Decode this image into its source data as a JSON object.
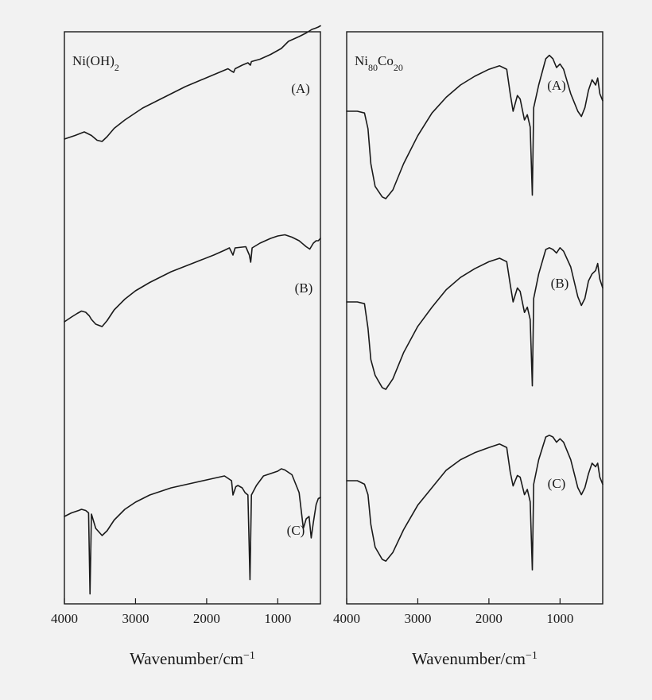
{
  "chart_data": [
    {
      "type": "line",
      "title": "Ni(OH)2",
      "title_parts": {
        "base": "Ni(OH)",
        "sub1": "2"
      },
      "xlabel": "Wavenumber/cm",
      "xlabel_sup": "−1",
      "x_reversed": true,
      "xlim": [
        4000,
        400
      ],
      "xticks": [
        4000,
        3000,
        2000,
        1000
      ],
      "xtick_labels": [
        "4000",
        "3000",
        "2000",
        "1000"
      ],
      "y_axis": "none",
      "grid": false,
      "series": [
        {
          "name": "(A)",
          "points": [
            [
              4000,
              0.0
            ],
            [
              3850,
              0.03
            ],
            [
              3720,
              0.06
            ],
            [
              3620,
              0.03
            ],
            [
              3540,
              -0.01
            ],
            [
              3470,
              -0.02
            ],
            [
              3400,
              0.02
            ],
            [
              3300,
              0.09
            ],
            [
              3150,
              0.16
            ],
            [
              3000,
              0.22
            ],
            [
              2900,
              0.26
            ],
            [
              2700,
              0.32
            ],
            [
              2500,
              0.38
            ],
            [
              2300,
              0.44
            ],
            [
              2100,
              0.49
            ],
            [
              1900,
              0.54
            ],
            [
              1700,
              0.59
            ],
            [
              1650,
              0.57
            ],
            [
              1620,
              0.56
            ],
            [
              1600,
              0.59
            ],
            [
              1500,
              0.62
            ],
            [
              1420,
              0.64
            ],
            [
              1385,
              0.62
            ],
            [
              1370,
              0.65
            ],
            [
              1250,
              0.67
            ],
            [
              1100,
              0.71
            ],
            [
              950,
              0.76
            ],
            [
              850,
              0.82
            ],
            [
              700,
              0.86
            ],
            [
              600,
              0.89
            ],
            [
              520,
              0.92
            ],
            [
              470,
              0.93
            ],
            [
              430,
              0.94
            ],
            [
              400,
              0.95
            ]
          ]
        },
        {
          "name": "(B)",
          "points": [
            [
              4000,
              0.0
            ],
            [
              3900,
              0.04
            ],
            [
              3820,
              0.07
            ],
            [
              3760,
              0.09
            ],
            [
              3700,
              0.08
            ],
            [
              3650,
              0.05
            ],
            [
              3620,
              0.02
            ],
            [
              3560,
              -0.02
            ],
            [
              3470,
              -0.04
            ],
            [
              3400,
              0.01
            ],
            [
              3300,
              0.1
            ],
            [
              3150,
              0.19
            ],
            [
              3000,
              0.26
            ],
            [
              2800,
              0.33
            ],
            [
              2500,
              0.42
            ],
            [
              2200,
              0.49
            ],
            [
              1900,
              0.56
            ],
            [
              1750,
              0.6
            ],
            [
              1680,
              0.62
            ],
            [
              1630,
              0.56
            ],
            [
              1600,
              0.62
            ],
            [
              1450,
              0.63
            ],
            [
              1400,
              0.56
            ],
            [
              1380,
              0.5
            ],
            [
              1360,
              0.62
            ],
            [
              1250,
              0.66
            ],
            [
              1100,
              0.7
            ],
            [
              1000,
              0.72
            ],
            [
              900,
              0.73
            ],
            [
              800,
              0.71
            ],
            [
              700,
              0.68
            ],
            [
              600,
              0.63
            ],
            [
              550,
              0.61
            ],
            [
              500,
              0.66
            ],
            [
              460,
              0.68
            ],
            [
              430,
              0.68
            ],
            [
              400,
              0.7
            ]
          ]
        },
        {
          "name": "(C)",
          "points": [
            [
              4000,
              0.0
            ],
            [
              3900,
              0.03
            ],
            [
              3800,
              0.05
            ],
            [
              3760,
              0.06
            ],
            [
              3700,
              0.05
            ],
            [
              3660,
              0.03
            ],
            [
              3640,
              -0.65
            ],
            [
              3620,
              0.02
            ],
            [
              3560,
              -0.1
            ],
            [
              3470,
              -0.16
            ],
            [
              3400,
              -0.12
            ],
            [
              3300,
              -0.03
            ],
            [
              3150,
              0.06
            ],
            [
              3000,
              0.12
            ],
            [
              2800,
              0.18
            ],
            [
              2500,
              0.24
            ],
            [
              2200,
              0.28
            ],
            [
              1900,
              0.32
            ],
            [
              1750,
              0.34
            ],
            [
              1650,
              0.3
            ],
            [
              1630,
              0.18
            ],
            [
              1590,
              0.25
            ],
            [
              1560,
              0.26
            ],
            [
              1500,
              0.24
            ],
            [
              1460,
              0.2
            ],
            [
              1420,
              0.18
            ],
            [
              1390,
              -0.53
            ],
            [
              1370,
              0.18
            ],
            [
              1300,
              0.26
            ],
            [
              1200,
              0.34
            ],
            [
              1100,
              0.36
            ],
            [
              1000,
              0.38
            ],
            [
              950,
              0.4
            ],
            [
              900,
              0.39
            ],
            [
              800,
              0.35
            ],
            [
              700,
              0.2
            ],
            [
              640,
              -0.1
            ],
            [
              600,
              -0.02
            ],
            [
              560,
              0.0
            ],
            [
              530,
              -0.18
            ],
            [
              500,
              -0.05
            ],
            [
              460,
              0.1
            ],
            [
              430,
              0.15
            ],
            [
              400,
              0.16
            ]
          ]
        }
      ]
    },
    {
      "type": "line",
      "title": "Ni80Co20",
      "title_parts": {
        "base1": "Ni",
        "sub1": "80",
        "base2": "Co",
        "sub2": "20"
      },
      "xlabel": "Wavenumber/cm",
      "xlabel_sup": "−1",
      "x_reversed": true,
      "xlim": [
        4000,
        400
      ],
      "xticks": [
        4000,
        3000,
        2000,
        1000
      ],
      "xtick_labels": [
        "4000",
        "3000",
        "2000",
        "1000"
      ],
      "y_axis": "none",
      "grid": false,
      "series": [
        {
          "name": "(A)",
          "points": [
            [
              4000,
              0.0
            ],
            [
              3850,
              0.0
            ],
            [
              3750,
              -0.01
            ],
            [
              3700,
              -0.1
            ],
            [
              3660,
              -0.3
            ],
            [
              3600,
              -0.43
            ],
            [
              3500,
              -0.49
            ],
            [
              3450,
              -0.5
            ],
            [
              3350,
              -0.45
            ],
            [
              3200,
              -0.3
            ],
            [
              3000,
              -0.14
            ],
            [
              2800,
              -0.01
            ],
            [
              2600,
              0.08
            ],
            [
              2400,
              0.15
            ],
            [
              2200,
              0.2
            ],
            [
              2000,
              0.24
            ],
            [
              1850,
              0.26
            ],
            [
              1750,
              0.24
            ],
            [
              1700,
              0.1
            ],
            [
              1660,
              0.0
            ],
            [
              1600,
              0.09
            ],
            [
              1560,
              0.07
            ],
            [
              1500,
              -0.05
            ],
            [
              1460,
              -0.02
            ],
            [
              1420,
              -0.09
            ],
            [
              1390,
              -0.48
            ],
            [
              1370,
              0.02
            ],
            [
              1300,
              0.15
            ],
            [
              1200,
              0.3
            ],
            [
              1150,
              0.32
            ],
            [
              1100,
              0.3
            ],
            [
              1050,
              0.25
            ],
            [
              1000,
              0.27
            ],
            [
              950,
              0.24
            ],
            [
              850,
              0.1
            ],
            [
              750,
              0.0
            ],
            [
              700,
              -0.03
            ],
            [
              650,
              0.02
            ],
            [
              600,
              0.12
            ],
            [
              550,
              0.18
            ],
            [
              500,
              0.15
            ],
            [
              470,
              0.19
            ],
            [
              440,
              0.1
            ],
            [
              400,
              0.06
            ]
          ]
        },
        {
          "name": "(B)",
          "points": [
            [
              4000,
              0.0
            ],
            [
              3850,
              0.0
            ],
            [
              3750,
              -0.01
            ],
            [
              3700,
              -0.15
            ],
            [
              3660,
              -0.33
            ],
            [
              3600,
              -0.42
            ],
            [
              3500,
              -0.49
            ],
            [
              3450,
              -0.5
            ],
            [
              3350,
              -0.44
            ],
            [
              3200,
              -0.29
            ],
            [
              3000,
              -0.14
            ],
            [
              2800,
              -0.03
            ],
            [
              2600,
              0.07
            ],
            [
              2400,
              0.14
            ],
            [
              2200,
              0.19
            ],
            [
              2000,
              0.23
            ],
            [
              1850,
              0.25
            ],
            [
              1750,
              0.23
            ],
            [
              1700,
              0.1
            ],
            [
              1660,
              0.0
            ],
            [
              1600,
              0.08
            ],
            [
              1560,
              0.06
            ],
            [
              1500,
              -0.06
            ],
            [
              1460,
              -0.03
            ],
            [
              1420,
              -0.1
            ],
            [
              1390,
              -0.48
            ],
            [
              1370,
              0.02
            ],
            [
              1300,
              0.16
            ],
            [
              1200,
              0.3
            ],
            [
              1150,
              0.31
            ],
            [
              1100,
              0.3
            ],
            [
              1050,
              0.28
            ],
            [
              1000,
              0.31
            ],
            [
              950,
              0.29
            ],
            [
              850,
              0.2
            ],
            [
              750,
              0.03
            ],
            [
              700,
              -0.02
            ],
            [
              650,
              0.02
            ],
            [
              600,
              0.12
            ],
            [
              550,
              0.16
            ],
            [
              500,
              0.18
            ],
            [
              470,
              0.22
            ],
            [
              440,
              0.13
            ],
            [
              400,
              0.08
            ]
          ]
        },
        {
          "name": "(C)",
          "points": [
            [
              4000,
              0.0
            ],
            [
              3850,
              0.0
            ],
            [
              3750,
              -0.02
            ],
            [
              3700,
              -0.08
            ],
            [
              3660,
              -0.25
            ],
            [
              3600,
              -0.38
            ],
            [
              3500,
              -0.45
            ],
            [
              3450,
              -0.46
            ],
            [
              3350,
              -0.41
            ],
            [
              3200,
              -0.28
            ],
            [
              3000,
              -0.14
            ],
            [
              2800,
              -0.04
            ],
            [
              2600,
              0.06
            ],
            [
              2400,
              0.12
            ],
            [
              2200,
              0.16
            ],
            [
              2000,
              0.19
            ],
            [
              1850,
              0.21
            ],
            [
              1750,
              0.19
            ],
            [
              1700,
              0.05
            ],
            [
              1660,
              -0.03
            ],
            [
              1600,
              0.03
            ],
            [
              1560,
              0.02
            ],
            [
              1500,
              -0.08
            ],
            [
              1460,
              -0.05
            ],
            [
              1420,
              -0.12
            ],
            [
              1390,
              -0.51
            ],
            [
              1370,
              -0.02
            ],
            [
              1300,
              0.12
            ],
            [
              1200,
              0.25
            ],
            [
              1150,
              0.26
            ],
            [
              1100,
              0.25
            ],
            [
              1050,
              0.22
            ],
            [
              1000,
              0.24
            ],
            [
              950,
              0.22
            ],
            [
              850,
              0.12
            ],
            [
              750,
              -0.04
            ],
            [
              700,
              -0.08
            ],
            [
              650,
              -0.04
            ],
            [
              600,
              0.04
            ],
            [
              550,
              0.1
            ],
            [
              500,
              0.08
            ],
            [
              470,
              0.1
            ],
            [
              440,
              0.02
            ],
            [
              400,
              -0.02
            ]
          ]
        }
      ]
    }
  ]
}
